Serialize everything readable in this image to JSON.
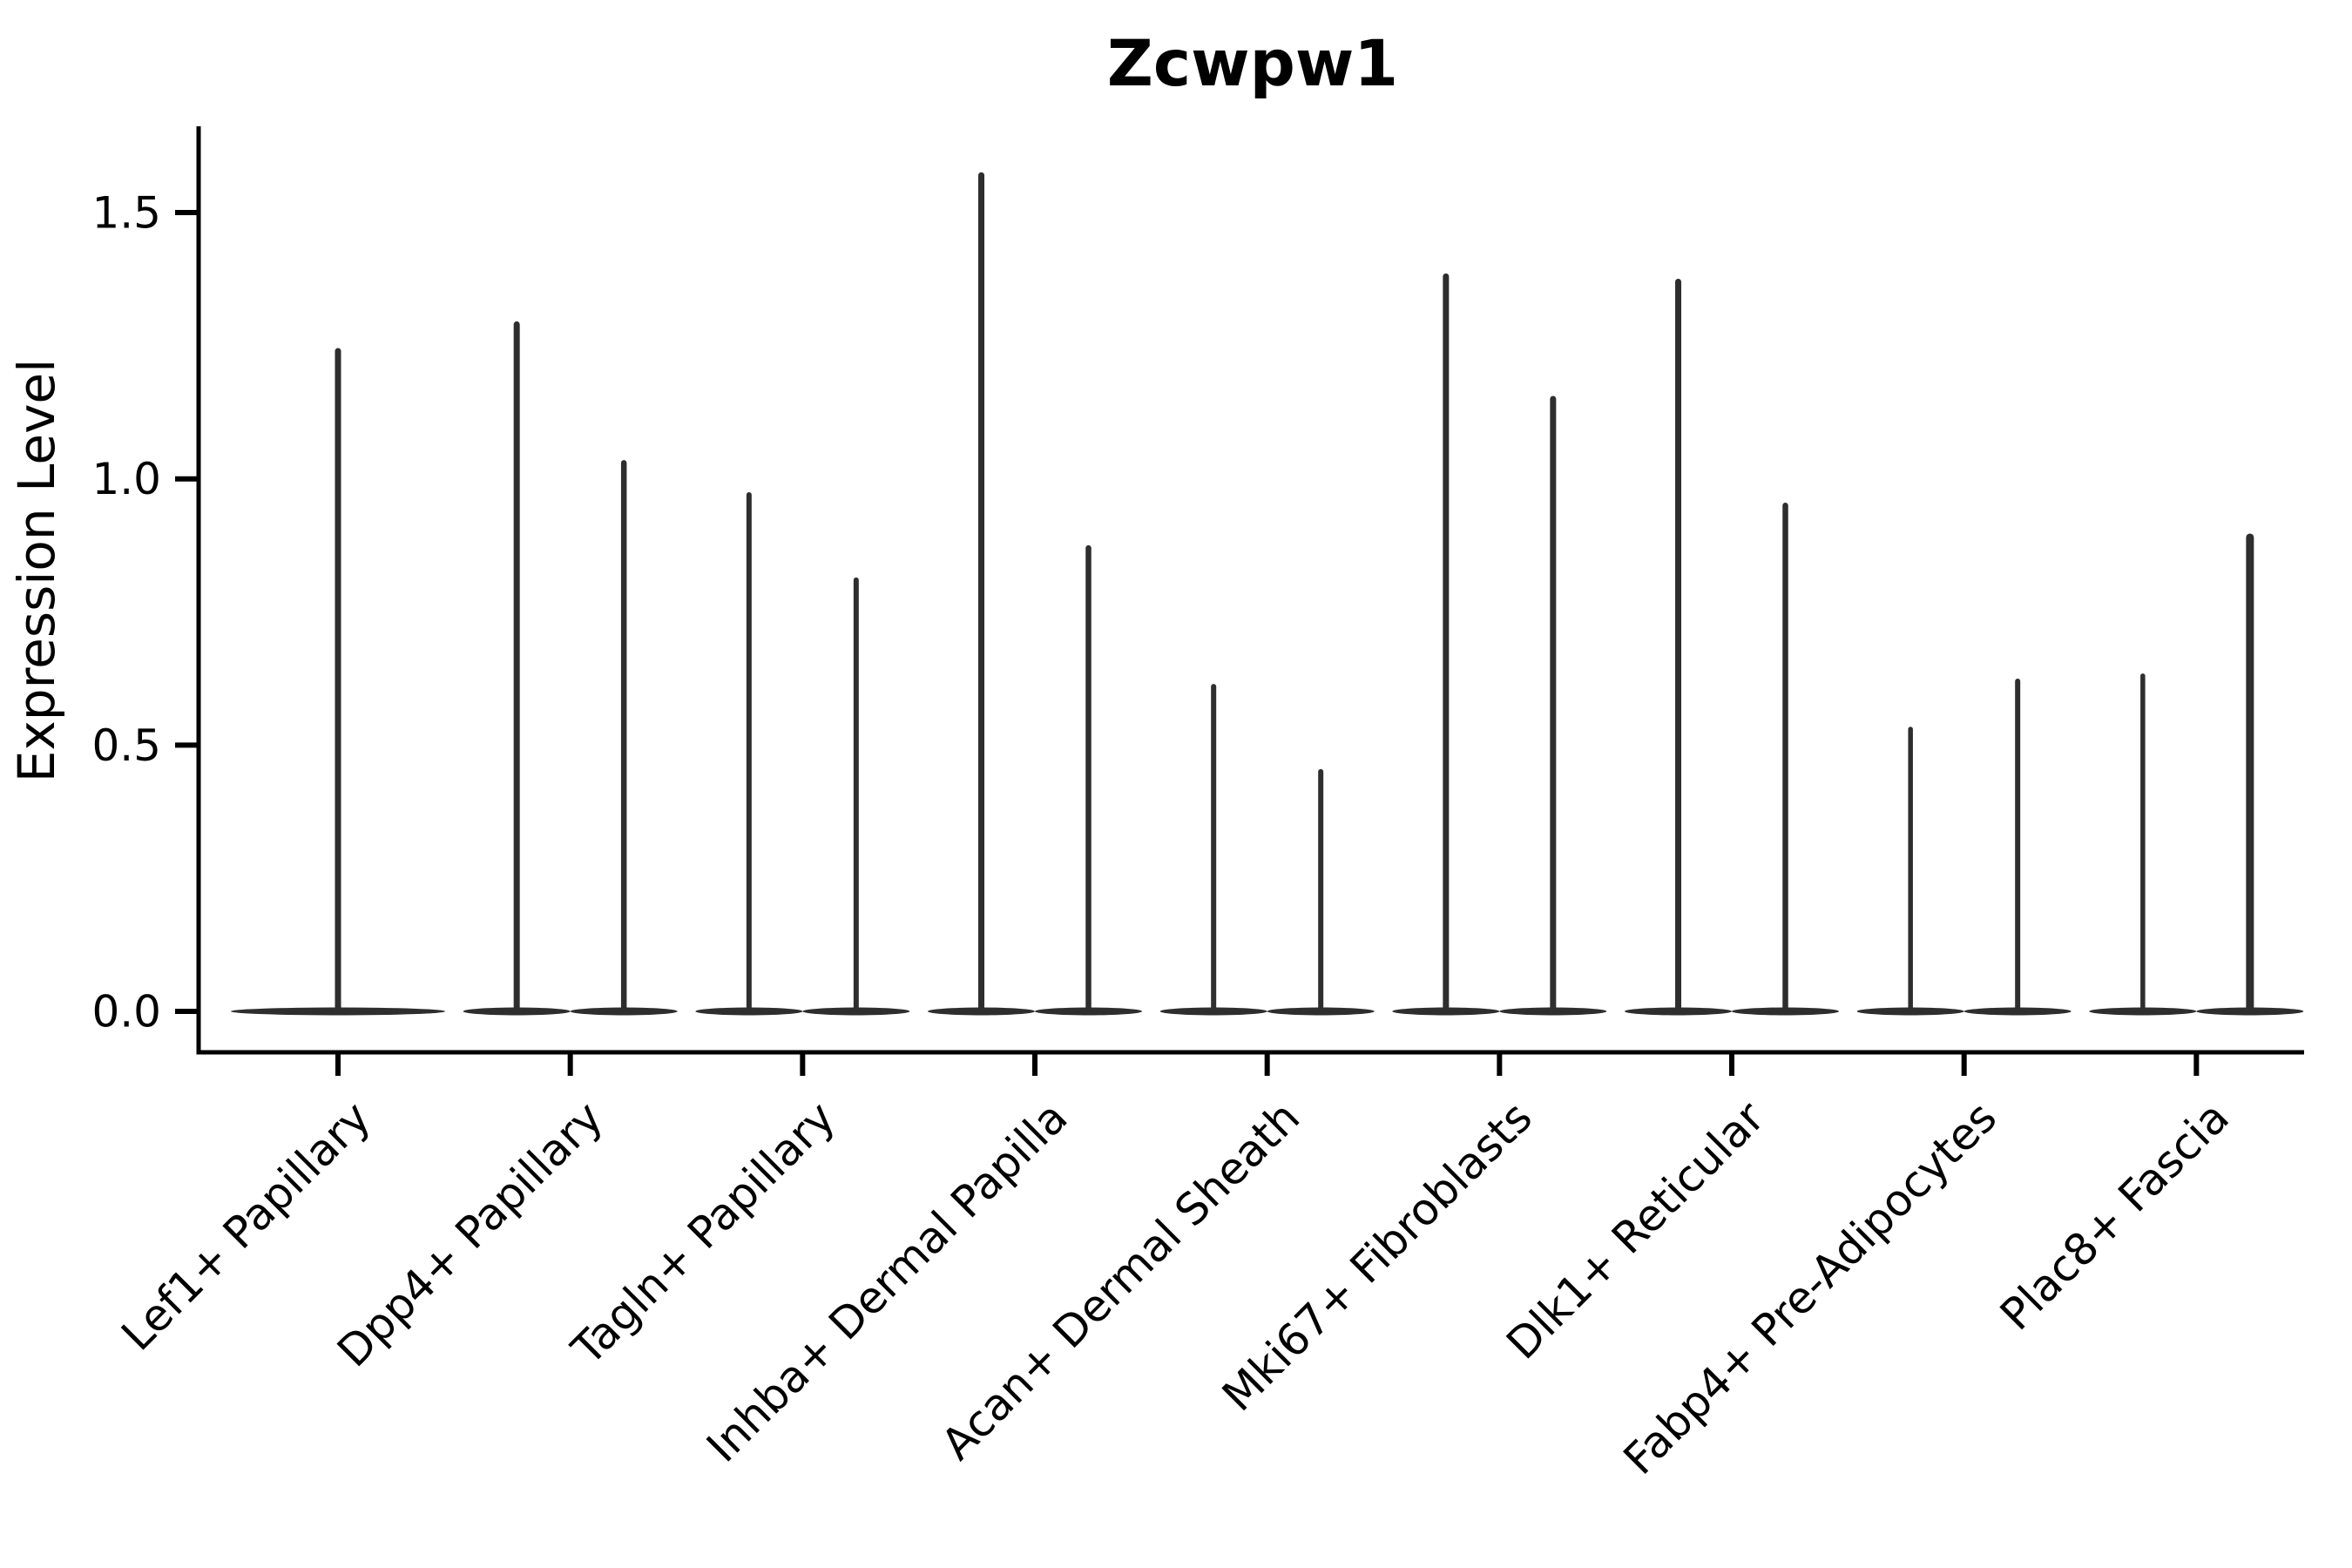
{
  "title": "Zcwpw1",
  "ylabel": "Expression Level",
  "colors": {
    "violin": "#2e2e2e",
    "axis": "#000000",
    "background": "#ffffff"
  },
  "chart_data": {
    "type": "violin",
    "title": "Zcwpw1",
    "xlabel": "",
    "ylabel": "Expression Level",
    "ylim": [
      -0.08,
      1.66
    ],
    "yticks": [
      {
        "value": 0.0,
        "label": "0.0"
      },
      {
        "value": 0.5,
        "label": "0.5"
      },
      {
        "value": 1.0,
        "label": "1.0"
      },
      {
        "value": 1.5,
        "label": "1.5"
      }
    ],
    "grid": false,
    "legend_position": "none",
    "x_tick_rotation_deg": 45,
    "description": "Violin plot of Zcwpw1 expression per fibroblast cluster; violins are extremely thin spikes with flat bases at 0 (most cells express 0). Categories 2-9 contain two dodged violins; category 1 has a single full-width violin. Value = maximum expression level reached by each violin spike.",
    "categories": [
      {
        "label": "Lef1+ Papillary",
        "violins": [
          {
            "position": "center",
            "max": 1.24,
            "spike_width": 7
          }
        ]
      },
      {
        "label": "Dpp4+ Papillary",
        "violins": [
          {
            "position": "left",
            "max": 1.29,
            "spike_width": 7
          },
          {
            "position": "right",
            "max": 1.03,
            "spike_width": 6.5
          }
        ]
      },
      {
        "label": "Tagln+ Papillary",
        "violins": [
          {
            "position": "left",
            "max": 0.97,
            "spike_width": 6
          },
          {
            "position": "right",
            "max": 0.81,
            "spike_width": 6
          }
        ]
      },
      {
        "label": "Inhba+ Dermal Papilla",
        "violins": [
          {
            "position": "left",
            "max": 1.57,
            "spike_width": 7
          },
          {
            "position": "right",
            "max": 0.87,
            "spike_width": 6.5
          }
        ]
      },
      {
        "label": "Acan+ Dermal Sheath",
        "violins": [
          {
            "position": "left",
            "max": 0.61,
            "spike_width": 6
          },
          {
            "position": "right",
            "max": 0.45,
            "spike_width": 6
          }
        ]
      },
      {
        "label": "Mki67+ Fibroblasts",
        "violins": [
          {
            "position": "left",
            "max": 1.38,
            "spike_width": 7
          },
          {
            "position": "right",
            "max": 1.15,
            "spike_width": 7
          }
        ]
      },
      {
        "label": "Dlk1+ Reticular",
        "violins": [
          {
            "position": "left",
            "max": 1.37,
            "spike_width": 7
          },
          {
            "position": "right",
            "max": 0.95,
            "spike_width": 6.5
          }
        ]
      },
      {
        "label": "Fabp4+ Pre-Adipocytes",
        "violins": [
          {
            "position": "left",
            "max": 0.53,
            "spike_width": 5.5
          },
          {
            "position": "right",
            "max": 0.62,
            "spike_width": 6
          }
        ]
      },
      {
        "label": "Plac8+ Fascia",
        "violins": [
          {
            "position": "left",
            "max": 0.63,
            "spike_width": 5.5
          },
          {
            "position": "right",
            "max": 0.89,
            "spike_width": 9
          }
        ]
      }
    ]
  }
}
